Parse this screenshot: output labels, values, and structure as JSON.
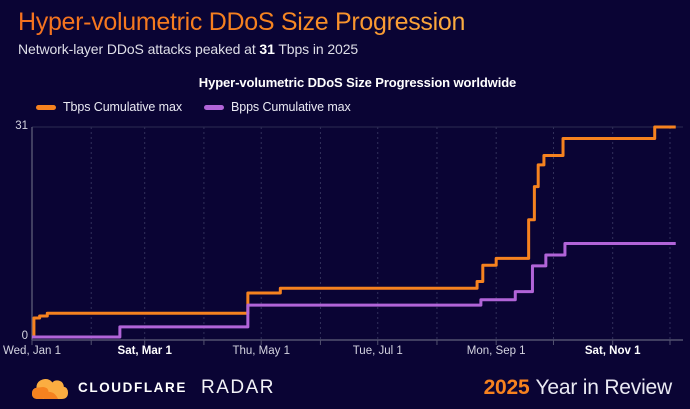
{
  "page": {
    "title": "Hyper-volumetric DDoS Size Progression",
    "subtitle_prefix": "Network-layer DDoS attacks peaked at ",
    "subtitle_peak": "31",
    "subtitle_suffix": " Tbps in 2025"
  },
  "legend": {
    "items": [
      {
        "label": "Tbps Cumulative max",
        "color": "#f6821f"
      },
      {
        "label": "Bpps Cumulative max",
        "color": "#b164d8"
      }
    ]
  },
  "footer": {
    "brand": "CLOUDFLARE",
    "product": "RADAR",
    "year": "2025",
    "tagline": "Year in Review",
    "logo_icon": "cloudflare-cloud-icon"
  },
  "colors": {
    "background": "#0a0434",
    "accent_orange": "#f6821f",
    "accent_orange_light": "#fbad41",
    "series_tbps": "#f6821f",
    "series_bpps": "#b164d8",
    "axis_line": "#52526f",
    "gridline": "#32315b",
    "plot_top_border": "#2c2b52",
    "text_primary": "#ffffff",
    "text_secondary": "#d4d4e0"
  },
  "chart_data": {
    "type": "line",
    "subtype": "step-cumulative-max",
    "title": "Hyper-volumetric DDoS Size Progression worldwide",
    "ylim": [
      0,
      31
    ],
    "y_ticks": [
      0,
      31
    ],
    "grid": "vertical-dashed-monthly",
    "legend_position": "top-left",
    "month_start_doys": [
      1,
      32,
      60,
      91,
      121,
      152,
      182,
      213,
      244,
      274,
      305,
      335
    ],
    "x_axis": {
      "range_days": [
        1,
        338
      ],
      "ticks": [
        {
          "label": "Wed, Jan 1",
          "doy": 1,
          "bold": false
        },
        {
          "label": "Sat, Mar 1",
          "doy": 60,
          "bold": true
        },
        {
          "label": "Thu, May 1",
          "doy": 121,
          "bold": false
        },
        {
          "label": "Tue, Jul 1",
          "doy": 182,
          "bold": false
        },
        {
          "label": "Mon, Sep 1",
          "doy": 244,
          "bold": false
        },
        {
          "label": "Sat, Nov 1",
          "doy": 305,
          "bold": true
        }
      ]
    },
    "series": [
      {
        "name": "Tbps Cumulative max",
        "unit": "Tbps",
        "color": "#f6821f",
        "points": [
          [
            1,
            0
          ],
          [
            2,
            2.8
          ],
          [
            5,
            3.1
          ],
          [
            9,
            3.5
          ],
          [
            114,
            6.5
          ],
          [
            131,
            7.2
          ],
          [
            234,
            8.2
          ],
          [
            237,
            10.6
          ],
          [
            244,
            11.6
          ],
          [
            261,
            17.3
          ],
          [
            264,
            22.2
          ],
          [
            266,
            25.4
          ],
          [
            269,
            26.8
          ],
          [
            279,
            29.3
          ],
          [
            327,
            31
          ],
          [
            338,
            31
          ]
        ]
      },
      {
        "name": "Bpps Cumulative max",
        "unit": "Bpps",
        "color": "#b164d8",
        "points": [
          [
            1,
            0
          ],
          [
            47,
            1.5
          ],
          [
            114,
            4.7
          ],
          [
            236,
            5.5
          ],
          [
            254,
            6.7
          ],
          [
            263,
            10.5
          ],
          [
            270,
            12.1
          ],
          [
            280,
            13.8
          ],
          [
            338,
            13.8
          ]
        ]
      }
    ]
  }
}
